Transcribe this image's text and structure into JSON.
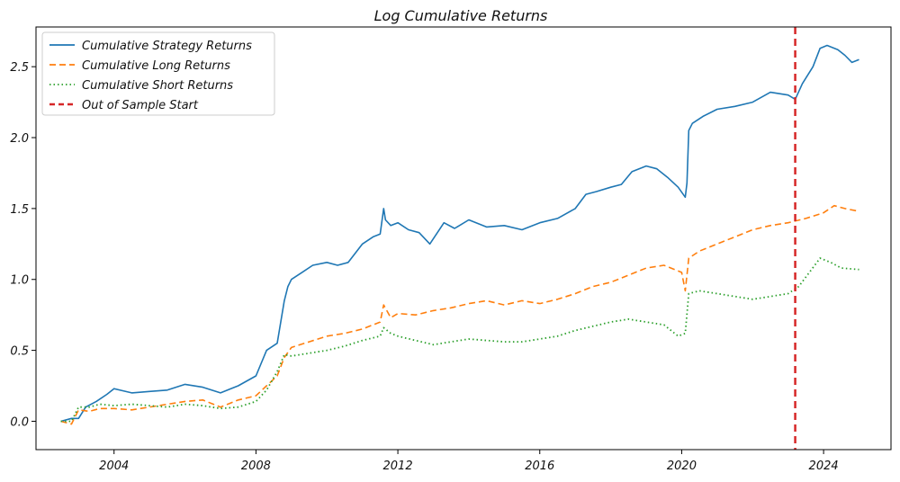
{
  "chart_data": {
    "type": "line",
    "title": "Log Cumulative Returns",
    "xlabel": "",
    "ylabel": "",
    "xlim": [
      2001.8,
      2025.9
    ],
    "ylim": [
      -0.2,
      2.78
    ],
    "x_ticks": [
      2004,
      2008,
      2012,
      2016,
      2020,
      2024
    ],
    "x_tick_labels": [
      "2004",
      "2008",
      "2012",
      "2016",
      "2020",
      "2024"
    ],
    "y_ticks": [
      0.0,
      0.5,
      1.0,
      1.5,
      2.0,
      2.5
    ],
    "y_tick_labels": [
      "0.0",
      "0.5",
      "1.0",
      "1.5",
      "2.0",
      "2.5"
    ],
    "grid": false,
    "legend_position": "top-left",
    "series": [
      {
        "name": "Cumulative Strategy Returns",
        "color": "#1f77b4",
        "style": "solid",
        "x": [
          2002.5,
          2002.8,
          2003.0,
          2003.2,
          2003.5,
          2003.8,
          2004.0,
          2004.5,
          2005.0,
          2005.5,
          2006.0,
          2006.5,
          2007.0,
          2007.5,
          2008.0,
          2008.3,
          2008.6,
          2008.8,
          2008.9,
          2009.0,
          2009.3,
          2009.6,
          2010.0,
          2010.3,
          2010.6,
          2011.0,
          2011.3,
          2011.5,
          2011.6,
          2011.65,
          2011.8,
          2012.0,
          2012.3,
          2012.6,
          2012.9,
          2013.3,
          2013.6,
          2014.0,
          2014.5,
          2015.0,
          2015.5,
          2016.0,
          2016.5,
          2017.0,
          2017.3,
          2017.6,
          2018.0,
          2018.3,
          2018.6,
          2019.0,
          2019.3,
          2019.6,
          2019.9,
          2020.1,
          2020.15,
          2020.2,
          2020.3,
          2020.6,
          2021.0,
          2021.5,
          2022.0,
          2022.5,
          2023.0,
          2023.2,
          2023.4,
          2023.7,
          2023.9,
          2024.1,
          2024.4,
          2024.6,
          2024.8,
          2025.0
        ],
        "values": [
          0.0,
          0.02,
          0.02,
          0.1,
          0.14,
          0.19,
          0.23,
          0.2,
          0.21,
          0.22,
          0.26,
          0.24,
          0.2,
          0.25,
          0.32,
          0.5,
          0.55,
          0.85,
          0.95,
          1.0,
          1.05,
          1.1,
          1.12,
          1.1,
          1.12,
          1.25,
          1.3,
          1.32,
          1.5,
          1.42,
          1.38,
          1.4,
          1.35,
          1.33,
          1.25,
          1.4,
          1.36,
          1.42,
          1.37,
          1.38,
          1.35,
          1.4,
          1.43,
          1.5,
          1.6,
          1.62,
          1.65,
          1.67,
          1.76,
          1.8,
          1.78,
          1.72,
          1.65,
          1.58,
          1.68,
          2.05,
          2.1,
          2.15,
          2.2,
          2.22,
          2.25,
          2.32,
          2.3,
          2.27,
          2.38,
          2.5,
          2.63,
          2.65,
          2.62,
          2.58,
          2.53,
          2.55
        ]
      },
      {
        "name": "Cumulative Long Returns",
        "color": "#ff7f0e",
        "style": "dashed",
        "x": [
          2002.5,
          2002.8,
          2003.0,
          2003.3,
          2003.6,
          2004.0,
          2004.5,
          2005.0,
          2005.5,
          2006.0,
          2006.5,
          2007.0,
          2007.5,
          2008.0,
          2008.3,
          2008.6,
          2008.8,
          2009.0,
          2009.5,
          2010.0,
          2010.5,
          2011.0,
          2011.5,
          2011.6,
          2011.8,
          2012.0,
          2012.5,
          2013.0,
          2013.5,
          2014.0,
          2014.5,
          2015.0,
          2015.5,
          2016.0,
          2016.5,
          2017.0,
          2017.5,
          2018.0,
          2018.5,
          2019.0,
          2019.5,
          2020.0,
          2020.1,
          2020.2,
          2020.5,
          2021.0,
          2021.5,
          2022.0,
          2022.5,
          2023.0,
          2023.5,
          2024.0,
          2024.3,
          2024.6,
          2025.0
        ],
        "values": [
          0.0,
          -0.02,
          0.08,
          0.07,
          0.09,
          0.09,
          0.08,
          0.1,
          0.12,
          0.14,
          0.15,
          0.1,
          0.15,
          0.18,
          0.25,
          0.32,
          0.45,
          0.52,
          0.56,
          0.6,
          0.62,
          0.65,
          0.7,
          0.82,
          0.73,
          0.76,
          0.75,
          0.78,
          0.8,
          0.83,
          0.85,
          0.82,
          0.85,
          0.83,
          0.86,
          0.9,
          0.95,
          0.98,
          1.03,
          1.08,
          1.1,
          1.05,
          0.92,
          1.15,
          1.2,
          1.25,
          1.3,
          1.35,
          1.38,
          1.4,
          1.43,
          1.47,
          1.52,
          1.5,
          1.48
        ]
      },
      {
        "name": "Cumulative Short Returns",
        "color": "#2ca02c",
        "style": "dotted",
        "x": [
          2002.5,
          2002.8,
          2003.0,
          2003.3,
          2003.6,
          2004.0,
          2004.5,
          2005.0,
          2005.5,
          2006.0,
          2006.5,
          2007.0,
          2007.5,
          2008.0,
          2008.3,
          2008.6,
          2008.8,
          2009.0,
          2009.5,
          2010.0,
          2010.5,
          2011.0,
          2011.5,
          2011.6,
          2011.8,
          2012.0,
          2012.5,
          2013.0,
          2013.5,
          2014.0,
          2014.5,
          2015.0,
          2015.5,
          2016.0,
          2016.5,
          2017.0,
          2017.5,
          2018.0,
          2018.5,
          2019.0,
          2019.5,
          2019.9,
          2020.1,
          2020.2,
          2020.5,
          2021.0,
          2021.5,
          2022.0,
          2022.5,
          2023.0,
          2023.3,
          2023.6,
          2023.9,
          2024.2,
          2024.5,
          2025.0
        ],
        "values": [
          0.0,
          0.0,
          0.1,
          0.1,
          0.12,
          0.11,
          0.12,
          0.11,
          0.1,
          0.12,
          0.11,
          0.09,
          0.1,
          0.14,
          0.22,
          0.35,
          0.47,
          0.46,
          0.48,
          0.5,
          0.53,
          0.57,
          0.6,
          0.66,
          0.62,
          0.6,
          0.57,
          0.54,
          0.56,
          0.58,
          0.57,
          0.56,
          0.56,
          0.58,
          0.6,
          0.64,
          0.67,
          0.7,
          0.72,
          0.7,
          0.68,
          0.6,
          0.62,
          0.9,
          0.92,
          0.9,
          0.88,
          0.86,
          0.88,
          0.9,
          0.95,
          1.05,
          1.15,
          1.12,
          1.08,
          1.07
        ]
      },
      {
        "name": "Out of Sample Start",
        "color": "#d62728",
        "style": "vline-dashed",
        "x_value": 2023.2
      }
    ]
  }
}
